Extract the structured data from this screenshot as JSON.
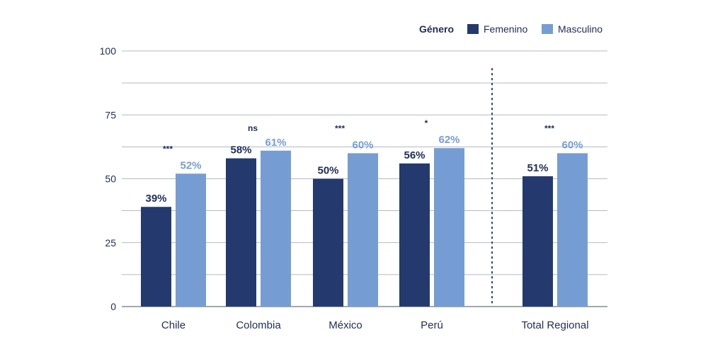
{
  "chart_data": {
    "type": "bar",
    "title": "",
    "xlabel": "",
    "ylabel": "",
    "ylim": [
      0,
      100
    ],
    "yticks": [
      0,
      25,
      50,
      75,
      100
    ],
    "grid": true,
    "legend": {
      "title": "Género",
      "placement": "top-right"
    },
    "categories": [
      "Chile",
      "Colombia",
      "México",
      "Perú",
      "Total Regional"
    ],
    "series": [
      {
        "name": "Femenino",
        "color": "#243a6e",
        "label_color": "#1f2d5a",
        "values": [
          39,
          58,
          50,
          56,
          51
        ],
        "labels": [
          "39%",
          "58%",
          "50%",
          "56%",
          "51%"
        ]
      },
      {
        "name": "Masculino",
        "color": "#769dd3",
        "label_color": "#769dd3",
        "values": [
          52,
          61,
          60,
          62,
          60
        ],
        "labels": [
          "52%",
          "61%",
          "60%",
          "62%",
          "60%"
        ]
      }
    ],
    "significance": [
      "***",
      "ns",
      "***",
      "*",
      "***"
    ],
    "separator": "dotted line before Total Regional"
  }
}
